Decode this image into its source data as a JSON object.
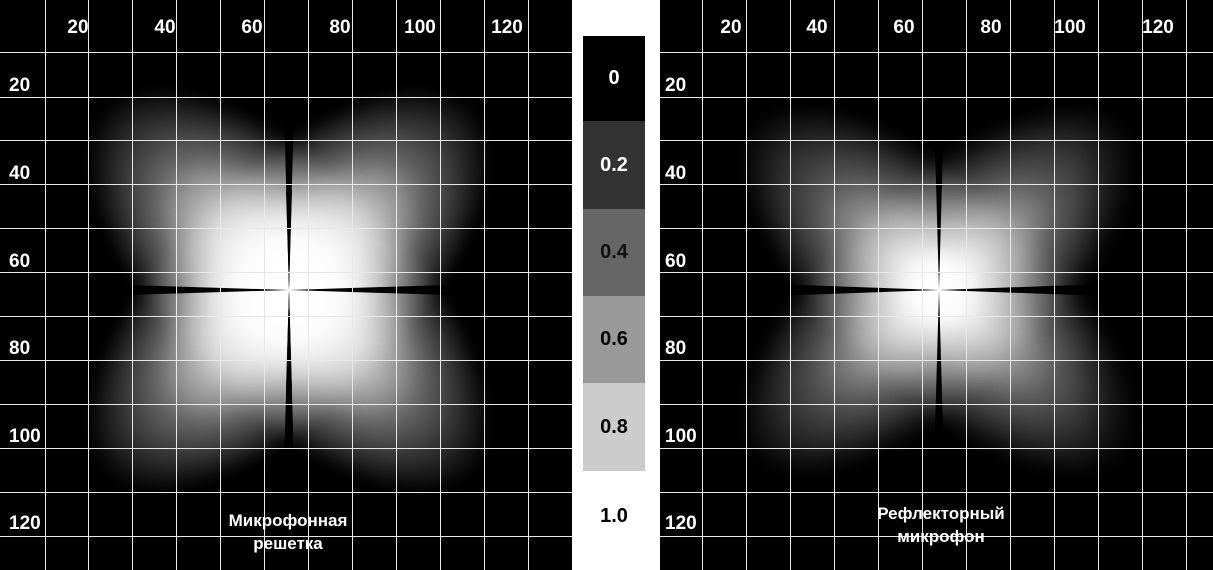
{
  "axes": {
    "x_ticks": [
      "20",
      "40",
      "60",
      "80",
      "100",
      "120"
    ],
    "y_ticks": [
      "20",
      "40",
      "60",
      "80",
      "100",
      "120"
    ]
  },
  "panels": [
    {
      "title_line1": "Микрофонная",
      "title_line2": "решетка"
    },
    {
      "title_line1": "Рефлекторный",
      "title_line2": "микрофон"
    }
  ],
  "colorbar": {
    "labels": [
      "0",
      "0.2",
      "0.4",
      "0.6",
      "0.8",
      "1.0"
    ],
    "colors": [
      "#000000",
      "#333333",
      "#666666",
      "#999999",
      "#cccccc",
      "#ffffff"
    ]
  }
}
